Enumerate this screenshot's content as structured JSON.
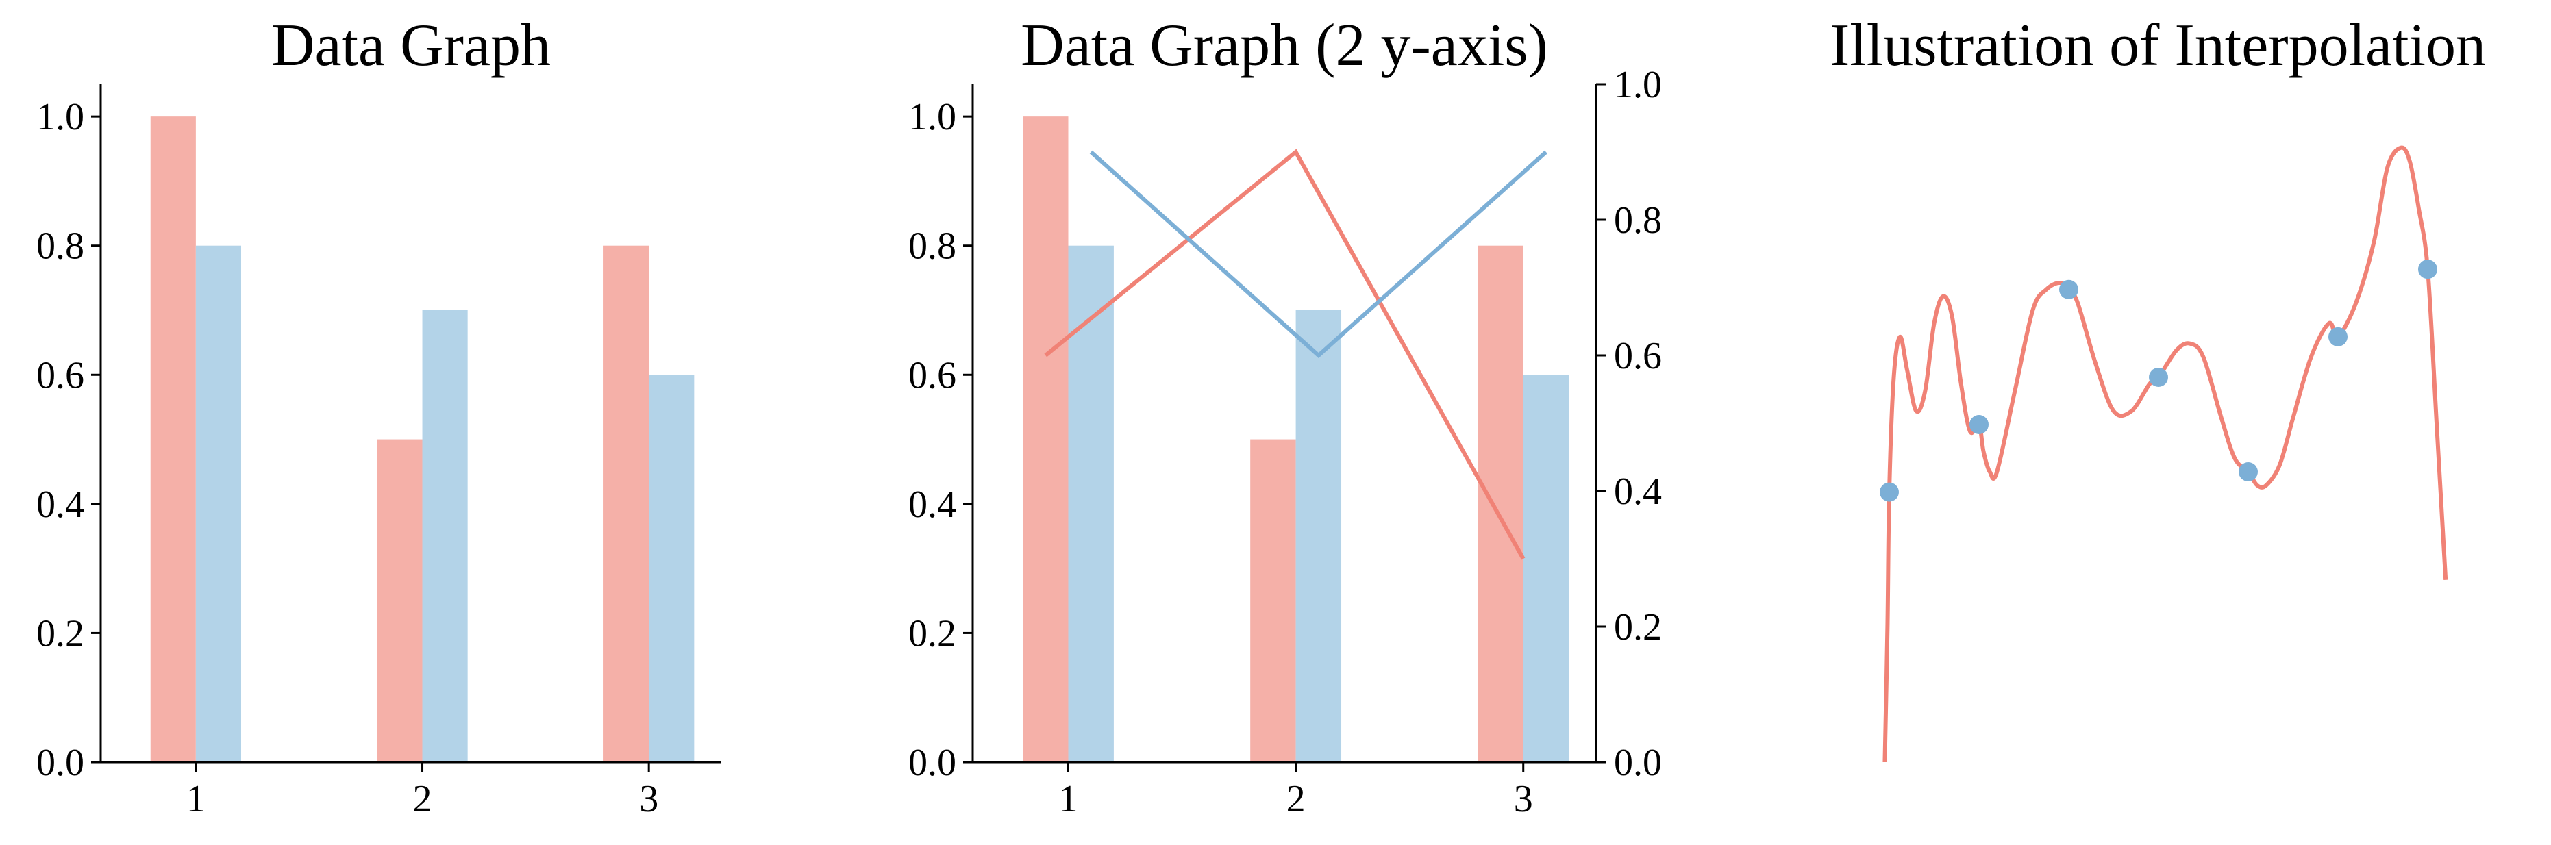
{
  "colors": {
    "red": "#F08276",
    "red_bar": "#F5B0A8",
    "blue": "#7CAFD6",
    "blue_bar": "#B3D3E8"
  },
  "chart_data": [
    {
      "type": "bar",
      "title": "Data Graph",
      "categories": [
        "1",
        "2",
        "3"
      ],
      "series": [
        {
          "values": [
            1.0,
            0.5,
            0.8
          ]
        },
        {
          "values": [
            0.8,
            0.7,
            0.6
          ]
        }
      ],
      "ylim": [
        0,
        1.05
      ],
      "yticks": [
        "0.0",
        "0.2",
        "0.4",
        "0.6",
        "0.8",
        "1.0"
      ]
    },
    {
      "type": "bar",
      "title": "Data Graph (2 y-axis)",
      "categories": [
        "1",
        "2",
        "3"
      ],
      "series": [
        {
          "values": [
            1.0,
            0.5,
            0.8
          ]
        },
        {
          "values": [
            0.8,
            0.7,
            0.6
          ]
        }
      ],
      "ylim": [
        0,
        1.05
      ],
      "yticks": [
        "0.0",
        "0.2",
        "0.4",
        "0.6",
        "0.8",
        "1.0"
      ],
      "secondary_axis": {
        "ylim": [
          0,
          1.0
        ],
        "yticks": [
          "0.0",
          "0.2",
          "0.4",
          "0.6",
          "0.8",
          "1.0"
        ],
        "lines": [
          {
            "x": [
              0.9,
              2.0,
              3.0
            ],
            "y": [
              0.6,
              0.9,
              0.3
            ],
            "color": "red"
          },
          {
            "x": [
              1.1,
              2.1,
              3.1
            ],
            "y": [
              0.9,
              0.6,
              0.9
            ],
            "color": "blue"
          }
        ]
      }
    },
    {
      "type": "line",
      "title": "Illustration of Interpolation",
      "axes_visible": false,
      "points": {
        "x": [
          0,
          1,
          2,
          3,
          4,
          5,
          6
        ],
        "y": [
          0.4,
          0.5,
          0.7,
          0.57,
          0.43,
          0.63,
          0.73
        ]
      },
      "curve": {
        "x": [
          -0.05,
          -0.02,
          0.0,
          0.05,
          0.12,
          0.2,
          0.3,
          0.4,
          0.5,
          0.6,
          0.7,
          0.8,
          0.9,
          1.0,
          1.05,
          1.12,
          1.2,
          1.4,
          1.6,
          1.75,
          1.9,
          2.0,
          2.1,
          2.3,
          2.5,
          2.7,
          2.9,
          3.0,
          3.2,
          3.35,
          3.5,
          3.7,
          3.85,
          4.0,
          4.1,
          4.2,
          4.35,
          4.5,
          4.7,
          4.9,
          5.0,
          5.2,
          5.4,
          5.55,
          5.7,
          5.8,
          5.9,
          6.0,
          6.1,
          6.2
        ],
        "y": [
          0.0,
          0.2,
          0.4,
          0.57,
          0.63,
          0.58,
          0.52,
          0.55,
          0.65,
          0.69,
          0.66,
          0.56,
          0.49,
          0.5,
          0.46,
          0.43,
          0.43,
          0.55,
          0.67,
          0.7,
          0.71,
          0.7,
          0.68,
          0.59,
          0.52,
          0.52,
          0.56,
          0.57,
          0.61,
          0.62,
          0.6,
          0.51,
          0.45,
          0.43,
          0.41,
          0.41,
          0.44,
          0.51,
          0.6,
          0.65,
          0.63,
          0.68,
          0.77,
          0.88,
          0.91,
          0.89,
          0.82,
          0.73,
          0.5,
          0.27
        ]
      }
    }
  ]
}
